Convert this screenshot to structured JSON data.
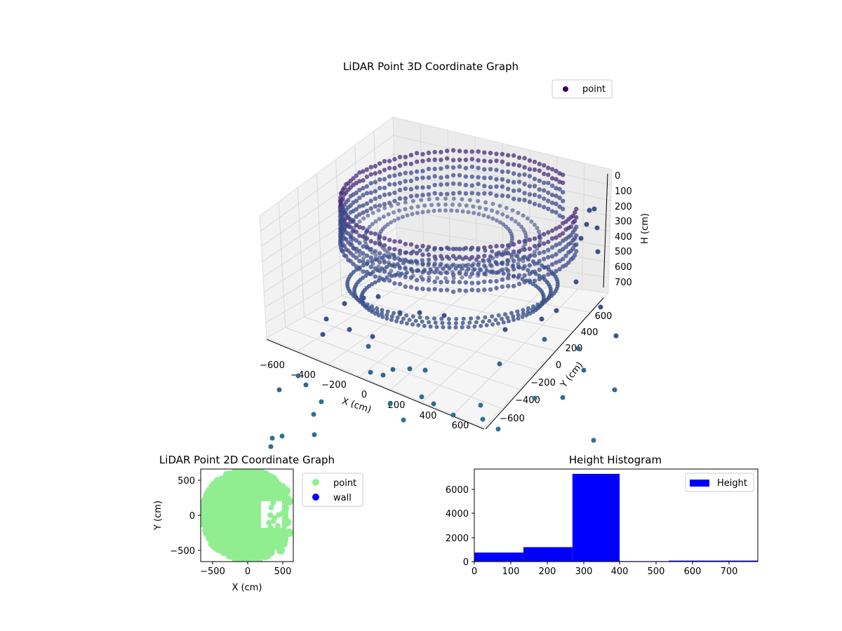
{
  "chart_data": [
    {
      "type": "scatter3d",
      "title": "LiDAR Point 3D Coordinate Graph",
      "xlabel": "X (cm)",
      "ylabel": "Y (cm)",
      "zlabel": "H (cm)",
      "x_ticks": [
        "−600",
        "−400",
        "−200",
        "0",
        "200",
        "400",
        "600"
      ],
      "y_ticks": [
        "−600",
        "−400",
        "−200",
        "0",
        "200",
        "400",
        "600"
      ],
      "z_ticks": [
        "0",
        "100",
        "200",
        "300",
        "400",
        "500",
        "600",
        "700"
      ],
      "xlim": [
        -650,
        650
      ],
      "ylim": [
        -650,
        650
      ],
      "zlim": [
        0,
        780
      ],
      "z_inverted": true,
      "legend": {
        "entries": [
          {
            "label": "point",
            "color": "#440154"
          }
        ],
        "placement": "upper-right"
      },
      "colormap": "viridis",
      "structure": {
        "wall_radius_cm": 560,
        "wall_height_range_cm": [
          250,
          450
        ],
        "floor_height_cm": 310,
        "outlier_height_range_cm": [
          450,
          780
        ]
      }
    },
    {
      "type": "scatter",
      "title": "LiDAR Point 2D Coordinate Graph",
      "xlabel": "X (cm)",
      "ylabel": "Y (cm)",
      "x_ticks": [
        "−500",
        "0",
        "500"
      ],
      "y_ticks": [
        "500",
        "0",
        "−500"
      ],
      "xlim": [
        -660,
        660
      ],
      "ylim": [
        -660,
        660
      ],
      "legend": {
        "entries": [
          {
            "label": "point",
            "color": "#90ee90"
          },
          {
            "label": "wall",
            "color": "#0000ff"
          }
        ],
        "placement": "outside-right"
      },
      "shape": "disk of points centered near (0,0), radius about 600 cm, with a notch on the right side"
    },
    {
      "type": "bar",
      "title": "Height Histogram",
      "legend": {
        "entries": [
          {
            "label": "Height",
            "color": "#0000ff"
          }
        ],
        "placement": "upper-right"
      },
      "x_ticks": [
        "0",
        "100",
        "200",
        "300",
        "400",
        "500",
        "600",
        "700"
      ],
      "y_ticks": [
        "0",
        "2000",
        "4000",
        "6000"
      ],
      "xlim": [
        0,
        780
      ],
      "ylim": [
        0,
        7700
      ],
      "bins": [
        {
          "x0": 0,
          "x1": 135,
          "count": 750
        },
        {
          "x0": 135,
          "x1": 270,
          "count": 1200
        },
        {
          "x0": 270,
          "x1": 400,
          "count": 7300
        },
        {
          "x0": 400,
          "x1": 535,
          "count": 40
        },
        {
          "x0": 535,
          "x1": 780,
          "count": 80
        }
      ],
      "bar_color": "#0000ff"
    }
  ]
}
